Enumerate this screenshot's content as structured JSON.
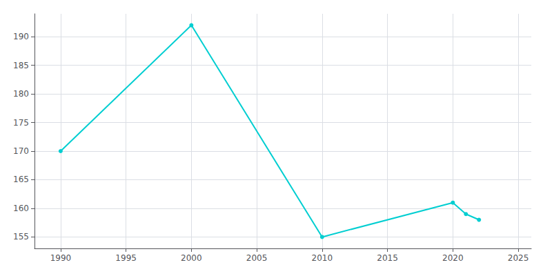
{
  "chart_data": {
    "type": "line",
    "x": [
      1990,
      2000,
      2010,
      2020,
      2021,
      2022
    ],
    "values": [
      170,
      192,
      155,
      161,
      159,
      158
    ],
    "color": "#00CED1",
    "marker": "circle",
    "xlim": [
      1988,
      2026
    ],
    "xticks": [
      1990,
      1995,
      2000,
      2005,
      2010,
      2015,
      2020,
      2025
    ],
    "ylim": [
      153,
      194
    ],
    "yticks": [
      155,
      160,
      165,
      170,
      175,
      180,
      185,
      190
    ],
    "grid": true
  }
}
